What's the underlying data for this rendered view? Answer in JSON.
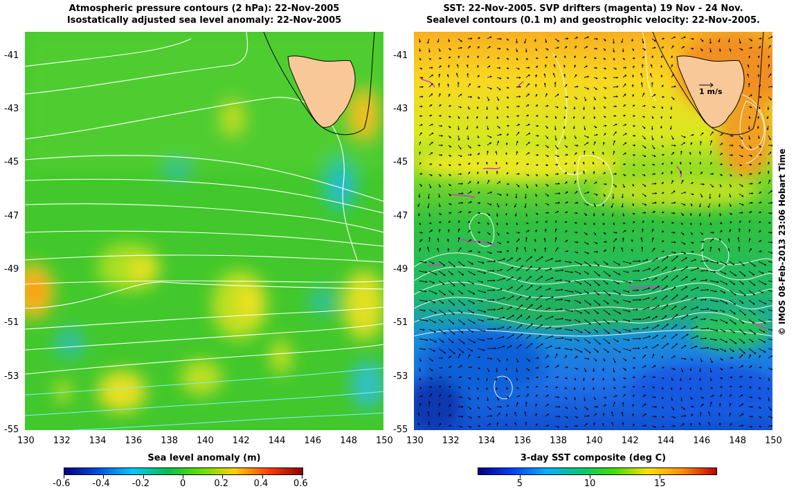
{
  "left_panel": {
    "title_line1": "Atmospheric pressure contours (2 hPa): 22-Nov-2005",
    "title_line2": "Isostatically adjusted sea level anomaly: 22-Nov-2005",
    "colorbar_title": "Sea level anomaly (m)",
    "colorbar_ticks": [
      "-0.6",
      "-0.4",
      "-0.2",
      "0",
      "0.2",
      "0.4",
      "0.6"
    ],
    "colorbar_colors": [
      "#000080",
      "#0050e0",
      "#00c8ff",
      "#00c050",
      "#60e000",
      "#ffd000",
      "#ff4000",
      "#900000"
    ]
  },
  "right_panel": {
    "title_line1": "SST: 22-Nov-2005. SVP drifters (magenta) 19 Nov - 24 Nov.",
    "title_line2": "Sealevel contours (0.1 m) and geostrophic velocity: 22-Nov-2005.",
    "colorbar_title": "3-day SST composite (deg C)",
    "colorbar_ticks": [
      "5",
      "10",
      "15"
    ],
    "colorbar_colors": [
      "#00007f",
      "#0040ff",
      "#00b0ff",
      "#00c878",
      "#40e000",
      "#ffe000",
      "#ff9000",
      "#c00000"
    ],
    "scale_vector_label": "1 m/s"
  },
  "axes": {
    "lon_ticks": [
      "130",
      "132",
      "134",
      "136",
      "138",
      "140",
      "142",
      "144",
      "146",
      "148",
      "150"
    ],
    "lat_ticks": [
      "-41",
      "-43",
      "-45",
      "-47",
      "-49",
      "-51",
      "-53",
      "-55"
    ],
    "lon_range": [
      130,
      150
    ],
    "lat_range": [
      -55,
      -40.1
    ]
  },
  "credit": "© IMOS 08-Feb-2013 23:06 Hobart Time",
  "colors": {
    "land": "#f8c898",
    "coast": "#000000",
    "drifters": "#d040c0",
    "contours": "#ffffff"
  }
}
